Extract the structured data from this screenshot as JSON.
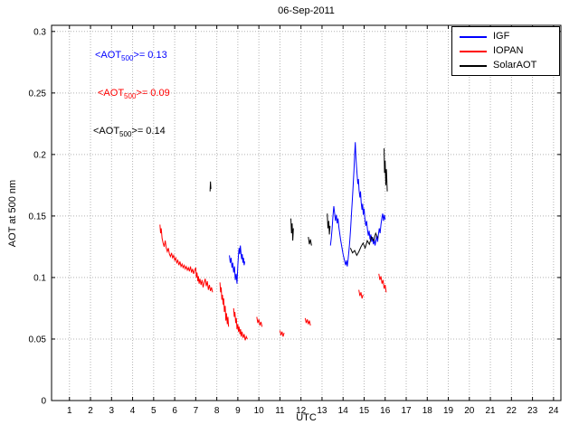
{
  "figure": {
    "title": "06-Sep-2011"
  },
  "chart_data": {
    "type": "line",
    "title": "06-Sep-2011",
    "xlabel": "UTC",
    "ylabel": "AOT at 500 nm",
    "xlim": [
      0.15,
      24.35
    ],
    "ylim": [
      0,
      0.305
    ],
    "xticks": [
      1,
      2,
      3,
      4,
      5,
      6,
      7,
      8,
      9,
      10,
      11,
      12,
      13,
      14,
      15,
      16,
      17,
      18,
      19,
      20,
      21,
      22,
      23,
      24
    ],
    "yticks": [
      0,
      0.05,
      0.1,
      0.15,
      0.2,
      0.25,
      0.3
    ],
    "ytick_labels": [
      "0",
      "0.05",
      "0.1",
      "0.15",
      "0.2",
      "0.25",
      "0.3"
    ],
    "grid": true,
    "legend": {
      "position": "top-right",
      "items": [
        {
          "label": "IGF",
          "color": "#0000ff"
        },
        {
          "label": "IOPAN",
          "color": "#ff0000"
        },
        {
          "label": "SolarAOT",
          "color": "#000000"
        }
      ]
    },
    "annotations": [
      {
        "prefix": "<AOT",
        "sub": "500",
        "suffix": ">= 0.13",
        "color": "#0000ff",
        "x": 105,
        "y": 55
      },
      {
        "prefix": "<AOT",
        "sub": "500",
        "suffix": ">= 0.09",
        "color": "#ff0000",
        "x": 108,
        "y": 97
      },
      {
        "prefix": "<AOT",
        "sub": "500",
        "suffix": ">= 0.14",
        "color": "#000000",
        "x": 103,
        "y": 139
      }
    ],
    "series": [
      {
        "name": "IGF",
        "color": "#0000ff",
        "mean_aot500": 0.13,
        "segments": [
          [
            [
              8.6,
              0.118
            ],
            [
              8.64,
              0.112
            ],
            [
              8.68,
              0.116
            ],
            [
              8.72,
              0.108
            ],
            [
              8.76,
              0.112
            ],
            [
              8.8,
              0.104
            ],
            [
              8.84,
              0.109
            ],
            [
              8.88,
              0.098
            ],
            [
              8.92,
              0.103
            ],
            [
              8.96,
              0.095
            ],
            [
              9.0,
              0.11
            ],
            [
              9.03,
              0.118
            ],
            [
              9.06,
              0.124
            ],
            [
              9.09,
              0.119
            ],
            [
              9.12,
              0.126
            ],
            [
              9.15,
              0.12
            ],
            [
              9.18,
              0.115
            ],
            [
              9.21,
              0.119
            ],
            [
              9.24,
              0.112
            ],
            [
              9.27,
              0.116
            ],
            [
              9.3,
              0.11
            ],
            [
              9.33,
              0.113
            ]
          ],
          [
            [
              13.4,
              0.126
            ],
            [
              13.44,
              0.132
            ],
            [
              13.48,
              0.14
            ],
            [
              13.52,
              0.15
            ],
            [
              13.56,
              0.158
            ],
            [
              13.6,
              0.152
            ],
            [
              13.64,
              0.146
            ],
            [
              13.68,
              0.151
            ],
            [
              13.72,
              0.144
            ],
            [
              13.76,
              0.148
            ],
            [
              13.8,
              0.141
            ],
            [
              13.84,
              0.136
            ],
            [
              13.88,
              0.131
            ],
            [
              13.92,
              0.127
            ],
            [
              13.96,
              0.123
            ],
            [
              14.0,
              0.119
            ],
            [
              14.04,
              0.116
            ],
            [
              14.08,
              0.113
            ],
            [
              14.12,
              0.11
            ],
            [
              14.16,
              0.114
            ],
            [
              14.2,
              0.109
            ],
            [
              14.24,
              0.115
            ],
            [
              14.28,
              0.122
            ],
            [
              14.32,
              0.13
            ],
            [
              14.36,
              0.14
            ],
            [
              14.4,
              0.152
            ],
            [
              14.44,
              0.163
            ],
            [
              14.48,
              0.175
            ],
            [
              14.52,
              0.188
            ],
            [
              14.55,
              0.2
            ],
            [
              14.58,
              0.21
            ],
            [
              14.61,
              0.198
            ],
            [
              14.64,
              0.19
            ],
            [
              14.67,
              0.183
            ],
            [
              14.7,
              0.176
            ],
            [
              14.73,
              0.18
            ],
            [
              14.76,
              0.171
            ],
            [
              14.8,
              0.165
            ],
            [
              14.83,
              0.17
            ],
            [
              14.86,
              0.161
            ],
            [
              14.9,
              0.155
            ],
            [
              14.93,
              0.16
            ],
            [
              14.96,
              0.151
            ],
            [
              15.0,
              0.156
            ],
            [
              15.04,
              0.147
            ],
            [
              15.08,
              0.142
            ],
            [
              15.12,
              0.146
            ],
            [
              15.16,
              0.139
            ],
            [
              15.2,
              0.134
            ],
            [
              15.24,
              0.138
            ],
            [
              15.28,
              0.131
            ],
            [
              15.32,
              0.135
            ],
            [
              15.36,
              0.129
            ],
            [
              15.4,
              0.133
            ],
            [
              15.44,
              0.127
            ],
            [
              15.48,
              0.131
            ],
            [
              15.52,
              0.126
            ],
            [
              15.56,
              0.13
            ],
            [
              15.6,
              0.134
            ],
            [
              15.64,
              0.129
            ],
            [
              15.68,
              0.135
            ],
            [
              15.72,
              0.14
            ],
            [
              15.76,
              0.136
            ],
            [
              15.8,
              0.143
            ],
            [
              15.84,
              0.148
            ],
            [
              15.88,
              0.152
            ],
            [
              15.92,
              0.146
            ],
            [
              15.96,
              0.151
            ],
            [
              16.0,
              0.147
            ]
          ]
        ]
      },
      {
        "name": "IOPAN",
        "color": "#ff0000",
        "mean_aot500": 0.09,
        "segments": [
          [
            [
              5.3,
              0.143
            ],
            [
              5.33,
              0.136
            ],
            [
              5.36,
              0.14
            ],
            [
              5.4,
              0.132
            ],
            [
              5.45,
              0.128
            ],
            [
              5.5,
              0.125
            ],
            [
              5.55,
              0.13
            ],
            [
              5.6,
              0.124
            ],
            [
              5.65,
              0.121
            ],
            [
              5.7,
              0.124
            ],
            [
              5.75,
              0.119
            ],
            [
              5.8,
              0.117
            ],
            [
              5.85,
              0.12
            ],
            [
              5.9,
              0.116
            ],
            [
              5.95,
              0.118
            ],
            [
              6.0,
              0.114
            ],
            [
              6.05,
              0.116
            ],
            [
              6.1,
              0.112
            ],
            [
              6.15,
              0.114
            ],
            [
              6.2,
              0.11
            ],
            [
              6.25,
              0.113
            ],
            [
              6.3,
              0.109
            ],
            [
              6.35,
              0.111
            ],
            [
              6.4,
              0.108
            ],
            [
              6.45,
              0.11
            ],
            [
              6.5,
              0.107
            ],
            [
              6.55,
              0.109
            ],
            [
              6.6,
              0.106
            ],
            [
              6.65,
              0.108
            ],
            [
              6.7,
              0.105
            ],
            [
              6.75,
              0.109
            ],
            [
              6.8,
              0.104
            ],
            [
              6.85,
              0.107
            ],
            [
              6.9,
              0.103
            ],
            [
              6.95,
              0.106
            ],
            [
              7.0,
              0.108
            ],
            [
              7.03,
              0.1
            ],
            [
              7.06,
              0.104
            ],
            [
              7.1,
              0.097
            ],
            [
              7.13,
              0.101
            ],
            [
              7.16,
              0.095
            ],
            [
              7.2,
              0.099
            ],
            [
              7.25,
              0.094
            ],
            [
              7.3,
              0.098
            ],
            [
              7.35,
              0.092
            ],
            [
              7.4,
              0.096
            ],
            [
              7.45,
              0.099
            ],
            [
              7.5,
              0.093
            ],
            [
              7.55,
              0.097
            ],
            [
              7.6,
              0.09
            ],
            [
              7.65,
              0.094
            ],
            [
              7.7,
              0.089
            ],
            [
              7.75,
              0.092
            ],
            [
              7.8,
              0.088
            ]
          ],
          [
            [
              8.15,
              0.096
            ],
            [
              8.18,
              0.088
            ],
            [
              8.21,
              0.092
            ],
            [
              8.24,
              0.082
            ],
            [
              8.27,
              0.086
            ],
            [
              8.3,
              0.078
            ],
            [
              8.33,
              0.083
            ],
            [
              8.36,
              0.072
            ],
            [
              8.4,
              0.077
            ],
            [
              8.43,
              0.065
            ],
            [
              8.46,
              0.071
            ],
            [
              8.5,
              0.062
            ],
            [
              8.53,
              0.068
            ],
            [
              8.56,
              0.06
            ]
          ],
          [
            [
              8.8,
              0.075
            ],
            [
              8.83,
              0.068
            ],
            [
              8.86,
              0.072
            ],
            [
              8.9,
              0.063
            ],
            [
              8.93,
              0.067
            ],
            [
              8.96,
              0.058
            ],
            [
              9.0,
              0.062
            ],
            [
              9.03,
              0.056
            ],
            [
              9.06,
              0.06
            ],
            [
              9.1,
              0.054
            ],
            [
              9.13,
              0.058
            ],
            [
              9.16,
              0.052
            ],
            [
              9.2,
              0.056
            ],
            [
              9.25,
              0.051
            ],
            [
              9.3,
              0.054
            ],
            [
              9.35,
              0.049
            ],
            [
              9.4,
              0.052
            ],
            [
              9.45,
              0.05
            ]
          ],
          [
            [
              9.9,
              0.068
            ],
            [
              9.95,
              0.063
            ],
            [
              10.0,
              0.066
            ],
            [
              10.05,
              0.061
            ],
            [
              10.1,
              0.064
            ],
            [
              10.15,
              0.06
            ]
          ],
          [
            [
              11.0,
              0.057
            ],
            [
              11.05,
              0.053
            ],
            [
              11.1,
              0.056
            ],
            [
              11.15,
              0.052
            ],
            [
              11.2,
              0.055
            ]
          ],
          [
            [
              12.2,
              0.067
            ],
            [
              12.25,
              0.063
            ],
            [
              12.3,
              0.066
            ],
            [
              12.35,
              0.062
            ],
            [
              12.4,
              0.065
            ],
            [
              12.45,
              0.061
            ]
          ],
          [
            [
              14.75,
              0.09
            ],
            [
              14.8,
              0.085
            ],
            [
              14.85,
              0.088
            ],
            [
              14.9,
              0.083
            ],
            [
              14.95,
              0.086
            ]
          ],
          [
            [
              15.7,
              0.103
            ],
            [
              15.75,
              0.098
            ],
            [
              15.8,
              0.101
            ],
            [
              15.85,
              0.095
            ],
            [
              15.9,
              0.098
            ],
            [
              15.95,
              0.091
            ],
            [
              16.0,
              0.094
            ],
            [
              16.05,
              0.088
            ]
          ]
        ]
      },
      {
        "name": "SolarAOT",
        "color": "#000000",
        "mean_aot500": 0.14,
        "segments": [
          [
            [
              7.68,
              0.17
            ],
            [
              7.7,
              0.178
            ],
            [
              7.72,
              0.172
            ]
          ],
          [
            [
              11.52,
              0.148
            ],
            [
              11.55,
              0.136
            ],
            [
              11.58,
              0.144
            ],
            [
              11.61,
              0.13
            ],
            [
              11.64,
              0.14
            ]
          ],
          [
            [
              12.35,
              0.133
            ],
            [
              12.4,
              0.127
            ],
            [
              12.45,
              0.131
            ],
            [
              12.5,
              0.126
            ]
          ],
          [
            [
              13.25,
              0.152
            ],
            [
              13.28,
              0.14
            ],
            [
              13.32,
              0.146
            ],
            [
              13.35,
              0.135
            ],
            [
              13.38,
              0.142
            ]
          ],
          [
            [
              14.35,
              0.124
            ],
            [
              14.45,
              0.12
            ],
            [
              14.55,
              0.122
            ],
            [
              14.65,
              0.118
            ],
            [
              14.75,
              0.121
            ],
            [
              14.85,
              0.125
            ],
            [
              14.95,
              0.128
            ],
            [
              15.05,
              0.124
            ],
            [
              15.15,
              0.13
            ],
            [
              15.25,
              0.127
            ],
            [
              15.35,
              0.133
            ],
            [
              15.45,
              0.13
            ],
            [
              15.55,
              0.136
            ],
            [
              15.65,
              0.132
            ]
          ],
          [
            [
              15.95,
              0.205
            ],
            [
              15.97,
              0.185
            ],
            [
              16.0,
              0.195
            ],
            [
              16.03,
              0.175
            ],
            [
              16.06,
              0.188
            ],
            [
              16.1,
              0.17
            ]
          ]
        ]
      }
    ]
  }
}
